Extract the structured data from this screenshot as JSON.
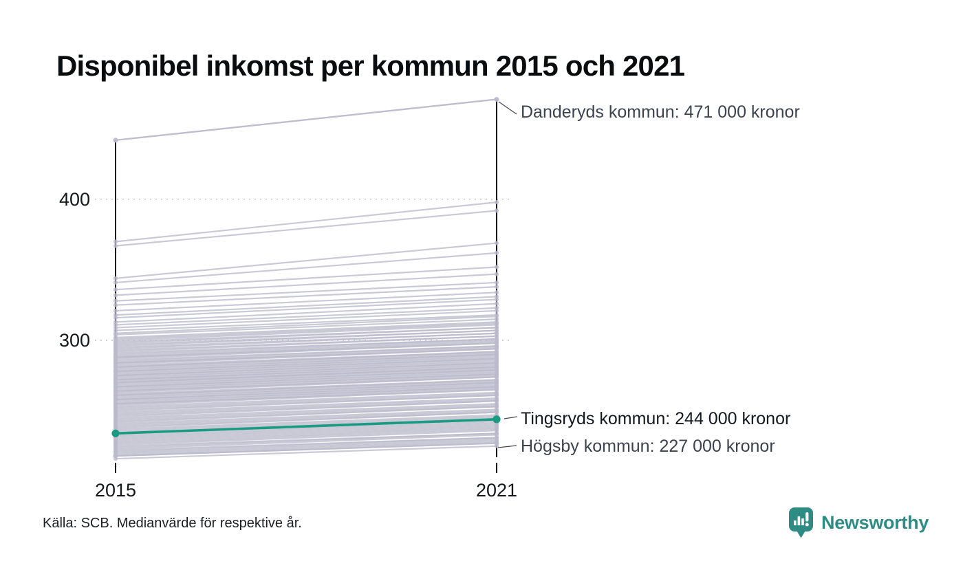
{
  "title": "Disponibel inkomst per kommun 2015 och 2021",
  "source": "Källa: SCB. Medianvärde för respektive år.",
  "branding": {
    "name": "Newsworthy",
    "color": "#2f8c85"
  },
  "colors": {
    "highlight": "#189b82",
    "background_line": "#bcbacb",
    "axis": "#16161a",
    "grid": "#d3d3d3",
    "annotation_default": "#3d434e",
    "annotation_highlight": "#15181e",
    "leader": "#4a4a4a"
  },
  "chart_data": {
    "type": "line",
    "subtype": "slopegraph",
    "x": [
      "2015",
      "2021"
    ],
    "yticks": [
      {
        "value": 400,
        "label": "400"
      },
      {
        "value": 300,
        "label": "300"
      }
    ],
    "unit": "tusen kronor (medianvärde)",
    "grid": "dotted horizontal",
    "legend_position": "none",
    "annotations": [
      {
        "name": "Danderyds kommun",
        "label": "Danderyds kommun: 471 000 kronor",
        "values": [
          442,
          471
        ],
        "style": "default"
      },
      {
        "name": "Tingsryds kommun",
        "label": "Tingsryds kommun: 244 000 kronor",
        "values": [
          234,
          244
        ],
        "style": "highlight"
      },
      {
        "name": "Högsby kommun",
        "label": "Högsby kommun: 227 000 kronor",
        "values": [
          218,
          227
        ],
        "style": "default"
      }
    ],
    "background_lines": [
      [
        216,
        225
      ],
      [
        218,
        228
      ],
      [
        219,
        229
      ],
      [
        220,
        230
      ],
      [
        221,
        231
      ],
      [
        222,
        231
      ],
      [
        223,
        233
      ],
      [
        224,
        234
      ],
      [
        225,
        234
      ],
      [
        226,
        236
      ],
      [
        227,
        237
      ],
      [
        228,
        238
      ],
      [
        229,
        239
      ],
      [
        230,
        240
      ],
      [
        231,
        241
      ],
      [
        232,
        242
      ],
      [
        233,
        243
      ],
      [
        235,
        245
      ],
      [
        236,
        246
      ],
      [
        237,
        247
      ],
      [
        238,
        249
      ],
      [
        239,
        249
      ],
      [
        240,
        250
      ],
      [
        241,
        251
      ],
      [
        242,
        253
      ],
      [
        243,
        253
      ],
      [
        244,
        254
      ],
      [
        245,
        255
      ],
      [
        246,
        257
      ],
      [
        247,
        257
      ],
      [
        248,
        258
      ],
      [
        249,
        259
      ],
      [
        250,
        261
      ],
      [
        251,
        261
      ],
      [
        252,
        262
      ],
      [
        253,
        263
      ],
      [
        254,
        265
      ],
      [
        255,
        265
      ],
      [
        255,
        266
      ],
      [
        256,
        267
      ],
      [
        257,
        267
      ],
      [
        258,
        269
      ],
      [
        258,
        268
      ],
      [
        259,
        270
      ],
      [
        260,
        270
      ],
      [
        261,
        271
      ],
      [
        261,
        272
      ],
      [
        262,
        272
      ],
      [
        263,
        274
      ],
      [
        264,
        274
      ],
      [
        264,
        275
      ],
      [
        265,
        276
      ],
      [
        266,
        276
      ],
      [
        267,
        278
      ],
      [
        267,
        277
      ],
      [
        268,
        279
      ],
      [
        269,
        279
      ],
      [
        270,
        280
      ],
      [
        270,
        281
      ],
      [
        271,
        281
      ],
      [
        272,
        283
      ],
      [
        272,
        282
      ],
      [
        273,
        284
      ],
      [
        274,
        284
      ],
      [
        275,
        285
      ],
      [
        275,
        286
      ],
      [
        276,
        287
      ],
      [
        277,
        287
      ],
      [
        278,
        289
      ],
      [
        278,
        288
      ],
      [
        279,
        290
      ],
      [
        280,
        290
      ],
      [
        281,
        291
      ],
      [
        281,
        292
      ],
      [
        282,
        292
      ],
      [
        283,
        294
      ],
      [
        284,
        294
      ],
      [
        284,
        295
      ],
      [
        285,
        296
      ],
      [
        286,
        296
      ],
      [
        287,
        298
      ],
      [
        288,
        298
      ],
      [
        288,
        299
      ],
      [
        289,
        300
      ],
      [
        290,
        301
      ],
      [
        291,
        301
      ],
      [
        292,
        303
      ],
      [
        293,
        303
      ],
      [
        294,
        305
      ],
      [
        295,
        305
      ],
      [
        296,
        307
      ],
      [
        297,
        307
      ],
      [
        298,
        309
      ],
      [
        299,
        309
      ],
      [
        300,
        311
      ],
      [
        301,
        312
      ],
      [
        302,
        313
      ],
      [
        304,
        315
      ],
      [
        305,
        317
      ],
      [
        307,
        318
      ],
      [
        309,
        321
      ],
      [
        311,
        323
      ],
      [
        313,
        326
      ],
      [
        316,
        329
      ],
      [
        318,
        331
      ],
      [
        321,
        334
      ],
      [
        325,
        338
      ],
      [
        328,
        341
      ],
      [
        332,
        347
      ],
      [
        336,
        352
      ],
      [
        341,
        362
      ],
      [
        344,
        369
      ],
      [
        367,
        392
      ],
      [
        370,
        398
      ]
    ]
  }
}
